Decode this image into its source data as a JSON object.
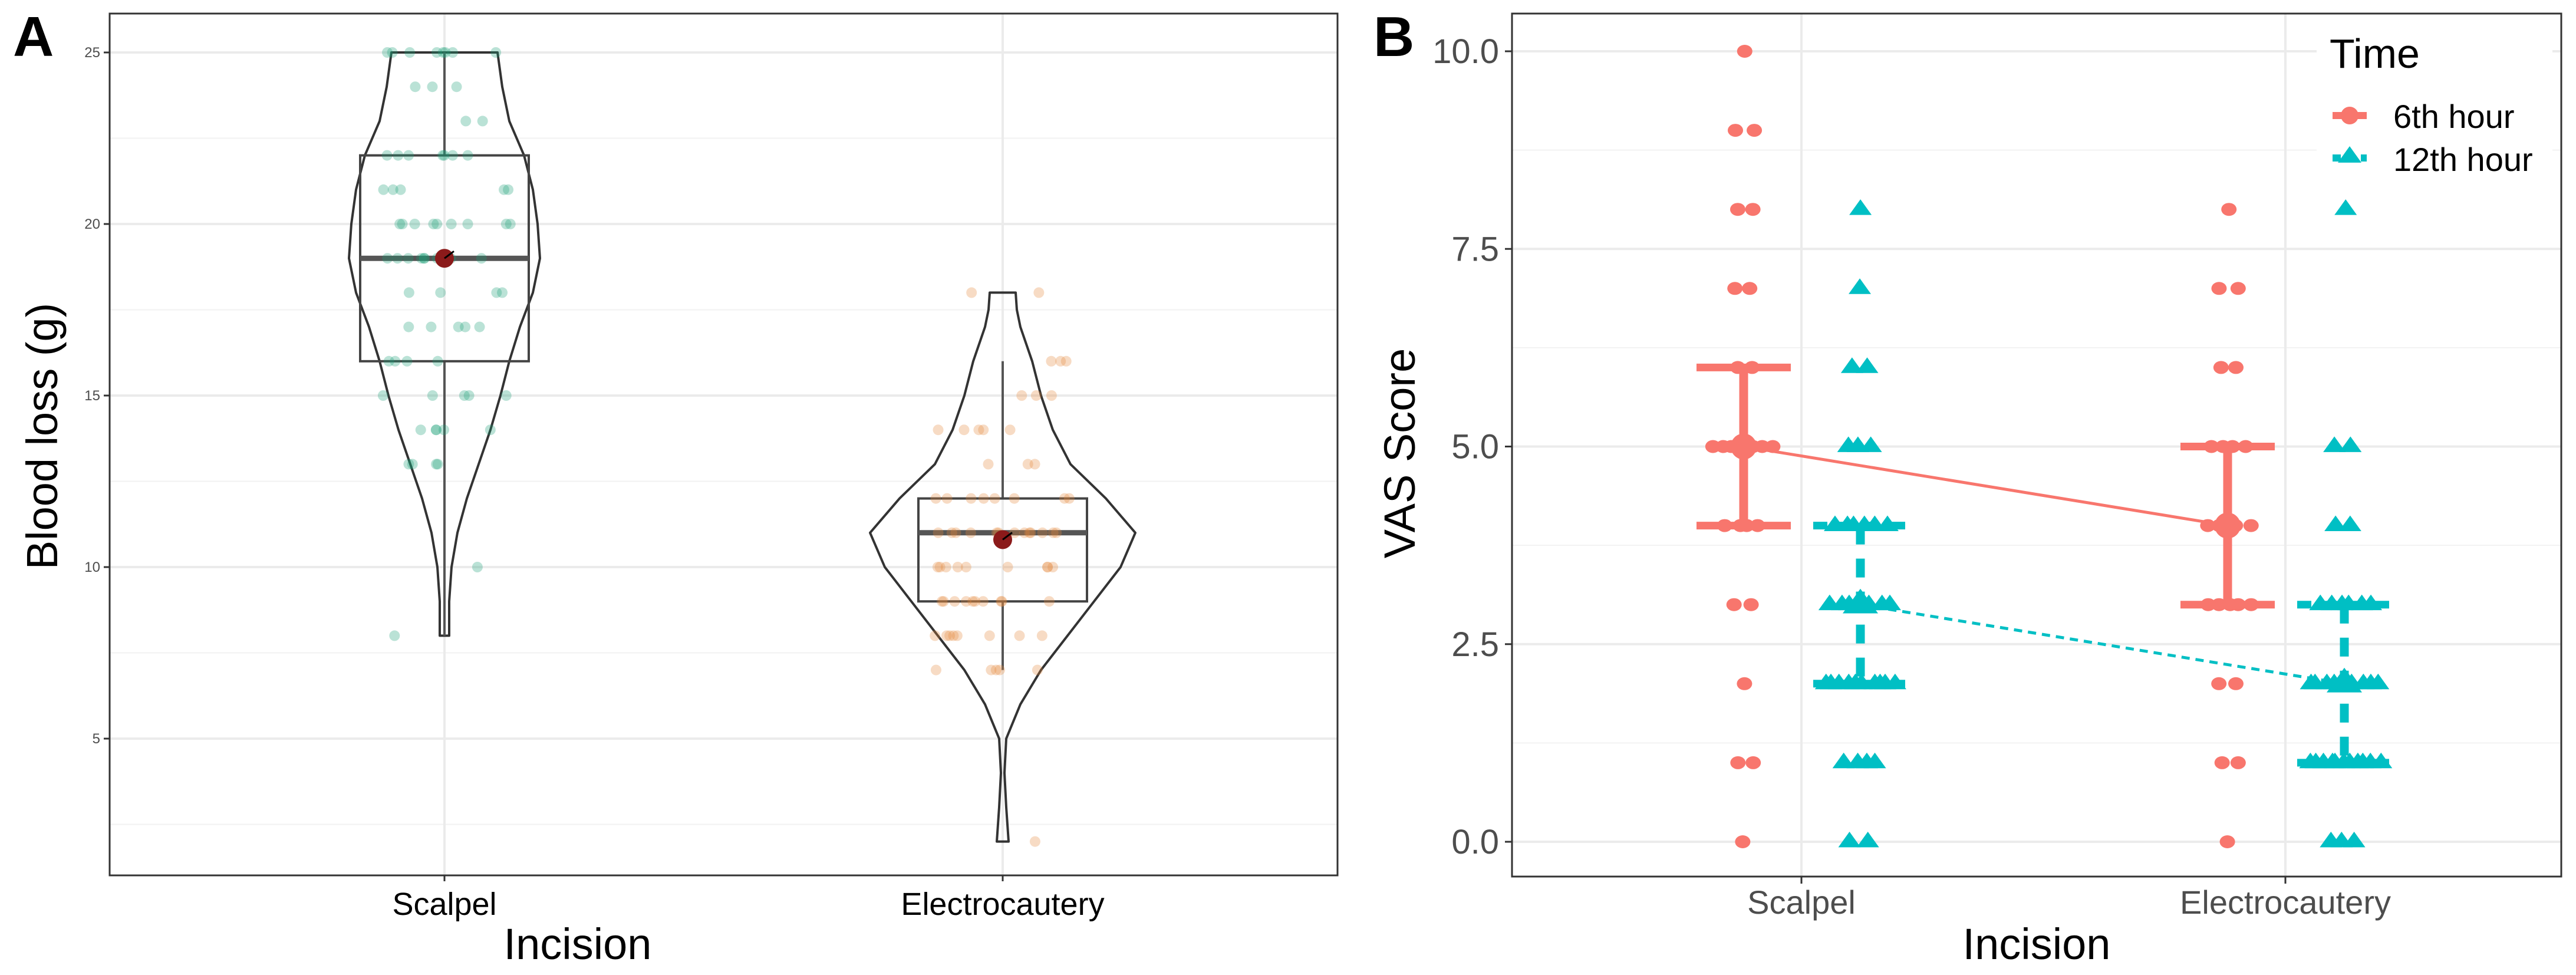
{
  "figure": {
    "panels": [
      "A",
      "B"
    ]
  },
  "chart_data": [
    {
      "panel": "A",
      "type": "violin",
      "title": "",
      "xlabel": "Incision",
      "ylabel": "Blood loss (g)",
      "categories": [
        "Scalpel",
        "Electrocautery"
      ],
      "ylim": [
        1.3,
        26.5
      ],
      "yticks": [
        5,
        10,
        15,
        20,
        25
      ],
      "grid": true,
      "colors": {
        "Scalpel": "#1b9e77",
        "Electrocautery": "#e6883a",
        "mean": "#8b1a1a"
      },
      "box": [
        {
          "category": "Scalpel",
          "min": 8,
          "q1": 16,
          "median": 19,
          "q3": 22,
          "max": 25,
          "mean": 19.0
        },
        {
          "category": "Electrocautery",
          "min": 7,
          "q1": 9,
          "median": 11,
          "q3": 12,
          "max": 16,
          "mean": 10.8
        }
      ],
      "violin_range": [
        {
          "category": "Scalpel",
          "min": 8,
          "max": 25
        },
        {
          "category": "Electrocautery",
          "min": 2,
          "max": 18
        }
      ],
      "points": [
        {
          "category": "Scalpel",
          "values": [
            25,
            25,
            25,
            25,
            25,
            25,
            25,
            25,
            24,
            24,
            24,
            23,
            23,
            22,
            22,
            22,
            22,
            22,
            22,
            22,
            21,
            21,
            21,
            21,
            21,
            20,
            20,
            20,
            20,
            20,
            20,
            20,
            20,
            20,
            19,
            19,
            19,
            19,
            19,
            19,
            19,
            19,
            19,
            18,
            18,
            18,
            18,
            17,
            17,
            17,
            17,
            17,
            16,
            16,
            16,
            16,
            15,
            15,
            15,
            15,
            15,
            14,
            14,
            14,
            14,
            14,
            13,
            13,
            13,
            13,
            10,
            8
          ]
        },
        {
          "category": "Electrocautery",
          "values": [
            18,
            18,
            16,
            16,
            16,
            15,
            15,
            15,
            14,
            14,
            14,
            14,
            14,
            13,
            13,
            13,
            12,
            12,
            12,
            12,
            12,
            12,
            12,
            12,
            11,
            11,
            11,
            11,
            11,
            11,
            11,
            11,
            11,
            11,
            11,
            11,
            11,
            10,
            10,
            10,
            10,
            10,
            10,
            10,
            10,
            10,
            9,
            9,
            9,
            9,
            9,
            9,
            9,
            9,
            9,
            9,
            8,
            8,
            8,
            8,
            8,
            8,
            8,
            8,
            7,
            7,
            7,
            7,
            7,
            2
          ]
        }
      ]
    },
    {
      "panel": "B",
      "type": "scatter",
      "title": "",
      "xlabel": "Incision",
      "ylabel": "VAS Score",
      "categories": [
        "Scalpel",
        "Electrocautery"
      ],
      "ylim": [
        -0.5,
        10.4
      ],
      "yticks": [
        0.0,
        2.5,
        5.0,
        7.5,
        10.0
      ],
      "ytick_labels": [
        "0.0",
        "2.5",
        "5.0",
        "7.5",
        "10.0"
      ],
      "grid": true,
      "legend": {
        "title": "Time",
        "placement": "top-right"
      },
      "series": [
        {
          "name": "6th hour",
          "color": "#f8766d",
          "marker": "circle",
          "linetype": "solid",
          "summary": [
            {
              "category": "Scalpel",
              "median": 5,
              "lower": 4,
              "upper": 6
            },
            {
              "category": "Electrocautery",
              "median": 4,
              "lower": 3,
              "upper": 5
            }
          ],
          "points": [
            {
              "category": "Scalpel",
              "values": [
                10,
                9,
                9,
                8,
                8,
                7,
                7,
                6,
                6,
                5,
                5,
                5,
                5,
                5,
                5,
                5,
                4,
                4,
                4,
                4,
                3,
                3,
                2,
                1,
                1,
                0
              ]
            },
            {
              "category": "Electrocautery",
              "values": [
                8,
                7,
                7,
                6,
                6,
                5,
                5,
                5,
                5,
                4,
                4,
                4,
                4,
                4,
                3,
                3,
                3,
                3,
                3,
                2,
                2,
                1,
                1,
                0
              ]
            }
          ]
        },
        {
          "name": "12th hour",
          "color": "#00bfc4",
          "marker": "triangle",
          "linetype": "dashed",
          "summary": [
            {
              "category": "Scalpel",
              "median": 3,
              "lower": 2,
              "upper": 4
            },
            {
              "category": "Electrocautery",
              "median": 2,
              "lower": 1,
              "upper": 3
            }
          ],
          "points": [
            {
              "category": "Scalpel",
              "values": [
                8,
                7,
                6,
                6,
                5,
                5,
                5,
                4,
                4,
                4,
                4,
                4,
                4,
                3,
                3,
                3,
                3,
                3,
                3,
                3,
                2,
                2,
                2,
                2,
                2,
                2,
                2,
                2,
                2,
                2,
                1,
                1,
                1,
                1,
                0,
                0
              ]
            },
            {
              "category": "Electrocautery",
              "values": [
                8,
                5,
                5,
                4,
                4,
                3,
                3,
                3,
                3,
                3,
                3,
                2,
                2,
                2,
                2,
                2,
                2,
                2,
                2,
                2,
                1,
                1,
                1,
                1,
                1,
                1,
                1,
                1,
                1,
                1,
                1,
                0,
                0,
                0
              ]
            }
          ]
        }
      ]
    }
  ]
}
